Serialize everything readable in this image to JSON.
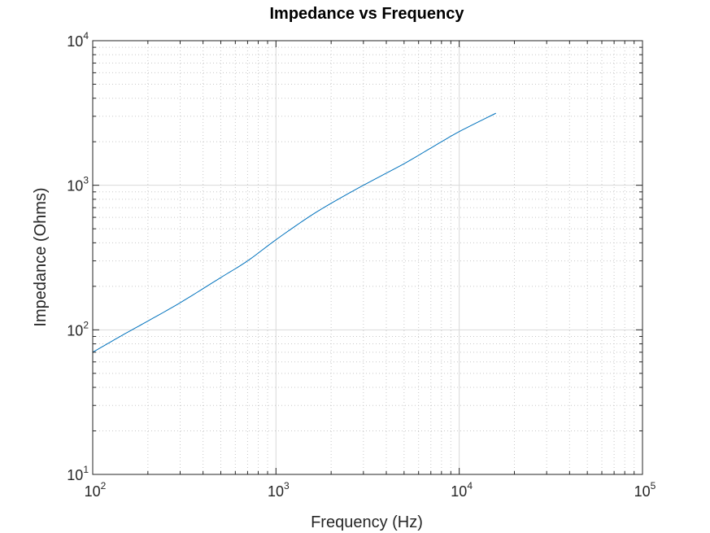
{
  "chart_data": {
    "type": "line",
    "title": "Impedance vs Frequency",
    "xlabel": "Frequency (Hz)",
    "ylabel": "Impedance (Ohms)",
    "xscale": "log",
    "yscale": "log",
    "xlim": [
      100,
      100000
    ],
    "ylim": [
      10,
      10000
    ],
    "grid": true,
    "minor_grid": true,
    "x_ticks": [
      {
        "value": 100,
        "base": "10",
        "exp": "2"
      },
      {
        "value": 1000,
        "base": "10",
        "exp": "3"
      },
      {
        "value": 10000,
        "base": "10",
        "exp": "4"
      },
      {
        "value": 100000,
        "base": "10",
        "exp": "5"
      }
    ],
    "y_ticks": [
      {
        "value": 10,
        "base": "10",
        "exp": "1"
      },
      {
        "value": 100,
        "base": "10",
        "exp": "2"
      },
      {
        "value": 1000,
        "base": "10",
        "exp": "3"
      },
      {
        "value": 10000,
        "base": "10",
        "exp": "4"
      }
    ],
    "series": [
      {
        "name": "Impedance",
        "color": "#0072BD",
        "x": [
          100,
          150,
          200,
          300,
          500,
          700,
          1000,
          1500,
          2000,
          3000,
          5000,
          7000,
          10000,
          15850
        ],
        "y": [
          70,
          94,
          115,
          154,
          230,
          300,
          420,
          600,
          750,
          1000,
          1410,
          1810,
          2350,
          3150
        ]
      }
    ]
  },
  "colors": {
    "axis": "#262626",
    "major_grid": "#d9d9d9",
    "minor_grid": "#c8c8c8",
    "background": "#ffffff"
  }
}
